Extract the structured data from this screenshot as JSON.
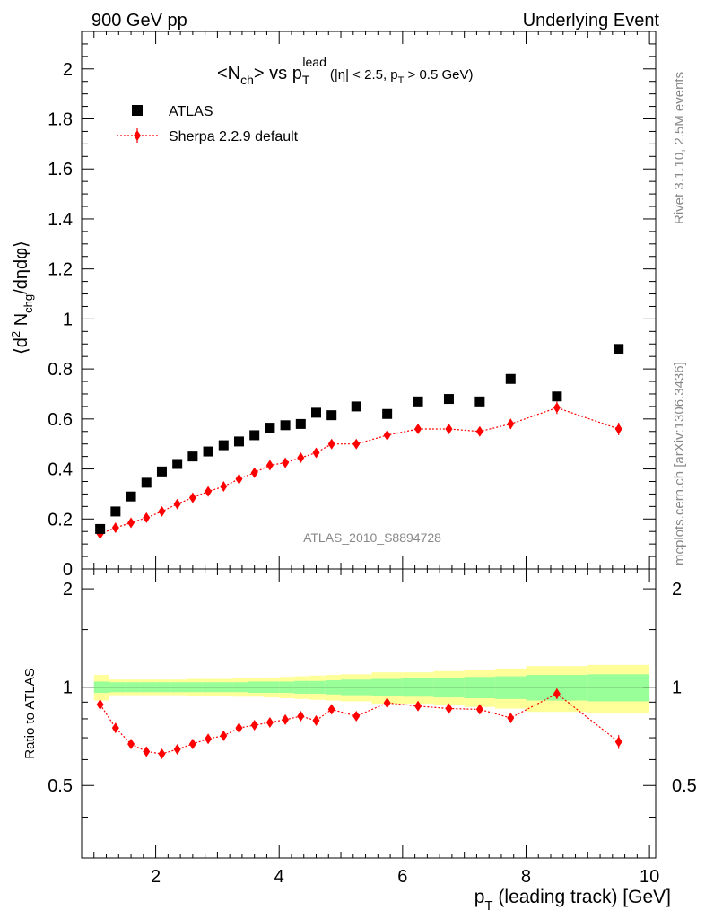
{
  "header": {
    "left": "900 GeV pp",
    "right": "Underlying Event"
  },
  "side_text": {
    "rivet": "Rivet 3.1.10,  2.5M events",
    "mcplots": "mcplots.cern.ch [arXiv:1306.3436]"
  },
  "watermark": "ATLAS_2010_S8894728",
  "colors": {
    "atlas": "#000000",
    "sherpa": "#ff0000",
    "band_inner": "#99ff99",
    "band_outer": "#ffff99"
  },
  "chart_data": [
    {
      "type": "scatter",
      "title": "<N_ch> vs p_T^lead (|η| < 2.5, p_T > 0.5 GeV)",
      "xlabel": "p_T (leading track) [GeV]",
      "ylabel": "⟨d² N_chg/dηdφ⟩",
      "xlim": [
        0.8,
        10.1
      ],
      "ylim": [
        0,
        2.15
      ],
      "yticks": [
        "0",
        "0.2",
        "0.4",
        "0.6",
        "0.8",
        "1",
        "1.2",
        "1.4",
        "1.6",
        "1.8",
        "2"
      ],
      "xticks": [
        "2",
        "4",
        "6",
        "8",
        "10"
      ],
      "legend_position": "top-left",
      "series": [
        {
          "name": "ATLAS",
          "x": [
            1.1,
            1.35,
            1.6,
            1.85,
            2.1,
            2.35,
            2.6,
            2.85,
            3.1,
            3.35,
            3.6,
            3.85,
            4.1,
            4.35,
            4.6,
            4.85,
            5.25,
            5.75,
            6.25,
            6.75,
            7.25,
            7.75,
            8.5,
            9.5
          ],
          "y": [
            0.16,
            0.23,
            0.29,
            0.345,
            0.39,
            0.42,
            0.45,
            0.47,
            0.495,
            0.51,
            0.535,
            0.565,
            0.575,
            0.58,
            0.625,
            0.615,
            0.65,
            0.62,
            0.67,
            0.68,
            0.67,
            0.76,
            0.69,
            0.88
          ]
        },
        {
          "name": "Sherpa 2.2.9 default",
          "x": [
            1.1,
            1.35,
            1.6,
            1.85,
            2.1,
            2.35,
            2.6,
            2.85,
            3.1,
            3.35,
            3.6,
            3.85,
            4.1,
            4.35,
            4.6,
            4.85,
            5.25,
            5.75,
            6.25,
            6.75,
            7.25,
            7.75,
            8.5,
            9.5
          ],
          "y": [
            0.14,
            0.165,
            0.185,
            0.205,
            0.23,
            0.26,
            0.285,
            0.31,
            0.33,
            0.36,
            0.385,
            0.415,
            0.425,
            0.445,
            0.465,
            0.5,
            0.5,
            0.535,
            0.56,
            0.56,
            0.55,
            0.58,
            0.645,
            0.56
          ],
          "err": [
            0.005,
            0.005,
            0.005,
            0.005,
            0.005,
            0.005,
            0.005,
            0.005,
            0.006,
            0.006,
            0.006,
            0.007,
            0.007,
            0.008,
            0.008,
            0.008,
            0.01,
            0.012,
            0.012,
            0.014,
            0.016,
            0.02,
            0.025,
            0.025
          ]
        }
      ]
    },
    {
      "type": "scatter",
      "xlabel": "p_T (leading track) [GeV]",
      "ylabel": "Ratio to ATLAS",
      "xlim": [
        0.8,
        10.1
      ],
      "ylim": [
        0.3,
        2.3
      ],
      "yticks": [
        "0.5",
        "1",
        "2"
      ],
      "xticks": [
        "2",
        "4",
        "6",
        "8",
        "10"
      ],
      "reference_line": 1,
      "bands": {
        "edges": [
          1.0,
          1.25,
          1.5,
          1.75,
          2.0,
          2.25,
          2.5,
          2.75,
          3.0,
          3.25,
          3.5,
          3.75,
          4.0,
          4.25,
          4.5,
          4.75,
          5.0,
          5.5,
          6.0,
          6.5,
          7.0,
          7.5,
          8.0,
          9.0,
          10.0
        ],
        "inner_half": [
          0.04,
          0.035,
          0.035,
          0.035,
          0.035,
          0.035,
          0.035,
          0.035,
          0.035,
          0.035,
          0.04,
          0.04,
          0.04,
          0.045,
          0.045,
          0.05,
          0.055,
          0.06,
          0.065,
          0.07,
          0.075,
          0.08,
          0.09,
          0.095
        ],
        "outer_half": [
          0.09,
          0.055,
          0.055,
          0.055,
          0.055,
          0.055,
          0.06,
          0.06,
          0.06,
          0.065,
          0.065,
          0.07,
          0.075,
          0.08,
          0.085,
          0.09,
          0.095,
          0.11,
          0.11,
          0.12,
          0.13,
          0.14,
          0.16,
          0.17
        ]
      },
      "series": [
        {
          "name": "Sherpa 2.2.9 default",
          "x": [
            1.1,
            1.35,
            1.6,
            1.85,
            2.1,
            2.35,
            2.6,
            2.85,
            3.1,
            3.35,
            3.6,
            3.85,
            4.1,
            4.35,
            4.6,
            4.85,
            5.25,
            5.75,
            6.25,
            6.75,
            7.25,
            7.75,
            8.5,
            9.5
          ],
          "y": [
            0.885,
            0.75,
            0.67,
            0.635,
            0.625,
            0.645,
            0.67,
            0.695,
            0.71,
            0.75,
            0.765,
            0.78,
            0.795,
            0.815,
            0.79,
            0.855,
            0.815,
            0.895,
            0.875,
            0.86,
            0.855,
            0.805,
            0.955,
            0.68
          ],
          "err": [
            0.01,
            0.01,
            0.01,
            0.01,
            0.01,
            0.01,
            0.01,
            0.01,
            0.01,
            0.01,
            0.01,
            0.012,
            0.012,
            0.013,
            0.013,
            0.013,
            0.015,
            0.017,
            0.018,
            0.02,
            0.023,
            0.026,
            0.035,
            0.033
          ]
        }
      ]
    }
  ]
}
